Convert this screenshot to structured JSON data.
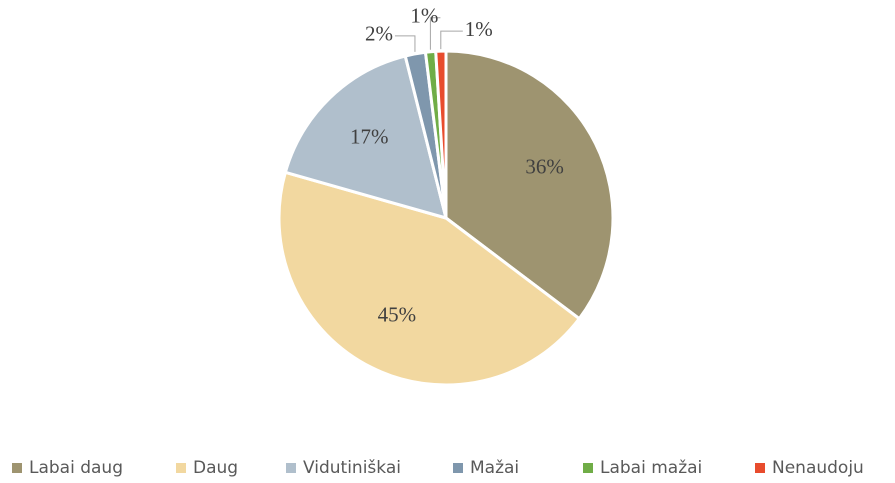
{
  "chart_data": {
    "type": "pie",
    "categories": [
      "Labai daug",
      "Daug",
      "Vidutiniškai",
      "Mažai",
      "Labai mažai",
      "Nenaudoju"
    ],
    "values": [
      36,
      45,
      17,
      2,
      1,
      1
    ],
    "value_labels": [
      "36%",
      "45%",
      "17%",
      "2%",
      "1%",
      "1%"
    ],
    "colors": [
      "#9e9470",
      "#f2d8a0",
      "#b0bfcc",
      "#7f97ad",
      "#70ad47",
      "#e84c2d"
    ],
    "legend": "bottom"
  }
}
